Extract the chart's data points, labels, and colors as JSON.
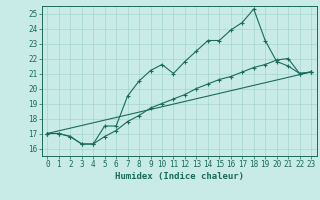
{
  "title": "",
  "xlabel": "Humidex (Indice chaleur)",
  "ylabel": "",
  "bg_color": "#c8ebe8",
  "grid_color": "#a8d5d0",
  "line_color": "#1a6b5a",
  "xlim": [
    -0.5,
    23.5
  ],
  "ylim": [
    15.5,
    25.5
  ],
  "xticks": [
    0,
    1,
    2,
    3,
    4,
    5,
    6,
    7,
    8,
    9,
    10,
    11,
    12,
    13,
    14,
    15,
    16,
    17,
    18,
    19,
    20,
    21,
    22,
    23
  ],
  "yticks": [
    16,
    17,
    18,
    19,
    20,
    21,
    22,
    23,
    24,
    25
  ],
  "series": [
    {
      "x": [
        0,
        1,
        2,
        3,
        4,
        5,
        6,
        7,
        8,
        9,
        10,
        11,
        12,
        13,
        14,
        15,
        16,
        17,
        18,
        19,
        20,
        21,
        22,
        23
      ],
      "y": [
        17.0,
        17.0,
        16.8,
        16.3,
        16.3,
        17.5,
        17.5,
        19.5,
        20.5,
        21.2,
        21.6,
        21.0,
        21.8,
        22.5,
        23.2,
        23.2,
        23.9,
        24.4,
        25.3,
        23.2,
        21.8,
        21.5,
        21.0,
        21.1
      ]
    },
    {
      "x": [
        0,
        1,
        2,
        3,
        4,
        5,
        6,
        7,
        8,
        9,
        10,
        11,
        12,
        13,
        14,
        15,
        16,
        17,
        18,
        19,
        20,
        21,
        22,
        23
      ],
      "y": [
        17.0,
        17.0,
        16.8,
        16.3,
        16.3,
        16.8,
        17.2,
        17.8,
        18.2,
        18.7,
        19.0,
        19.3,
        19.6,
        20.0,
        20.3,
        20.6,
        20.8,
        21.1,
        21.4,
        21.6,
        21.9,
        22.0,
        21.0,
        21.1
      ]
    },
    {
      "x": [
        0,
        23
      ],
      "y": [
        17.0,
        21.1
      ]
    }
  ]
}
